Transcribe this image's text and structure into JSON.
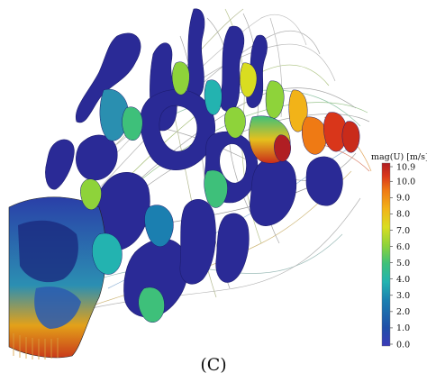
{
  "figure": {
    "caption": "(C)",
    "colorbar": {
      "title": "mag(U) [m/s]",
      "ticks": [
        "10.9",
        "10.0",
        "9.0",
        "8.0",
        "7.0",
        "6.0",
        "5.0",
        "4.0",
        "3.0",
        "2.0",
        "1.0",
        "0.0"
      ],
      "tick_values": [
        10.9,
        10.0,
        9.0,
        8.0,
        7.0,
        6.0,
        5.0,
        4.0,
        3.0,
        2.0,
        1.0,
        0.0
      ],
      "min": 0.0,
      "max": 10.9,
      "colors": [
        "#3b3bb8",
        "#1f4fa8",
        "#1b7fb0",
        "#23b3b0",
        "#3ec07a",
        "#8ed33a",
        "#d9dd20",
        "#f2b318",
        "#ef7a14",
        "#d9361a",
        "#b01e23"
      ]
    }
  }
}
